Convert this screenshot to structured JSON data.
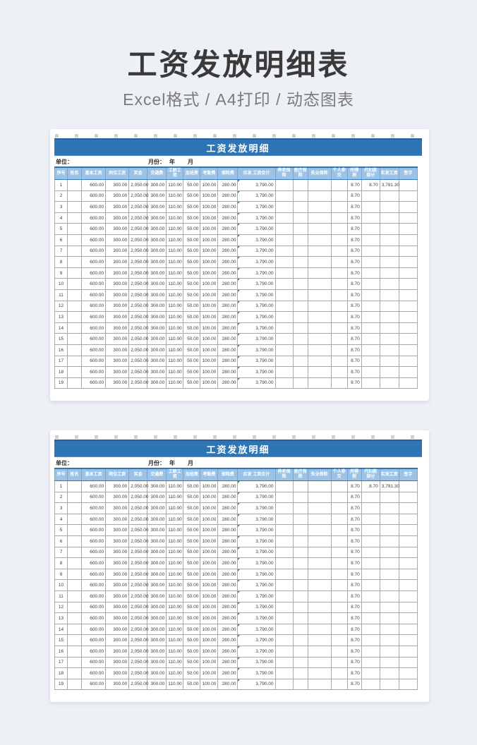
{
  "page": {
    "title": "工资发放明细表",
    "subtitle": "Excel格式 / A4打印 / 动态图表"
  },
  "colors": {
    "page_bg": "#edf0f5",
    "title_text": "#3a3a3a",
    "subtitle_text": "#7b7b7b",
    "bar_bg": "#2e75b6",
    "bar_top": "#275f96",
    "header_bg": "#9cc2e5",
    "header_text": "#ffffff",
    "header_border": "#76a5d6",
    "grid": "#a8a8a8",
    "cell_text": "#3c3c3c",
    "seniority_value": "#c45911",
    "error_flag": "#2e9e45"
  },
  "sheet": {
    "title": "工资发放明细",
    "unit_label": "单位：",
    "period_label": "月份：",
    "period_value": "年　月",
    "columns": [
      {
        "key": "index",
        "label": "序号",
        "width": 18,
        "align": "center"
      },
      {
        "key": "name",
        "label": "姓名",
        "width": 20,
        "align": "center"
      },
      {
        "key": "base-salary",
        "label": "基本工资",
        "width": 34,
        "align": "right"
      },
      {
        "key": "post-salary",
        "label": "岗位工资",
        "width": 33,
        "align": "right"
      },
      {
        "key": "bonus",
        "label": "奖金",
        "width": 26,
        "align": "right"
      },
      {
        "key": "transport-fee",
        "label": "交通费",
        "width": 27,
        "align": "right"
      },
      {
        "key": "seniority-pay",
        "label": "工龄工资",
        "width": 24,
        "align": "right",
        "cls": "warn"
      },
      {
        "key": "overtime-fee",
        "label": "加班费",
        "width": 24,
        "align": "right"
      },
      {
        "key": "attendance-fee",
        "label": "考勤费",
        "width": 25,
        "align": "right"
      },
      {
        "key": "insurance-fee",
        "label": "保险费",
        "width": 28,
        "align": "right"
      },
      {
        "key": "gross-total",
        "label": "应发 工资合计",
        "width": 53,
        "align": "right",
        "cls": "flag"
      },
      {
        "key": "pension-insurance",
        "label": "养老保险",
        "width": 25,
        "align": "right"
      },
      {
        "key": "medical-insurance",
        "label": "医疗保险",
        "width": 21,
        "align": "right"
      },
      {
        "key": "unemployment-insurance",
        "label": "失业保险",
        "width": 33,
        "align": "right"
      },
      {
        "key": "personal-contrib",
        "label": "个人参交",
        "width": 23,
        "align": "right"
      },
      {
        "key": "income-tax",
        "label": "所得税",
        "width": 20,
        "align": "right"
      },
      {
        "key": "withholding",
        "label": "代扣款部分",
        "width": 26,
        "align": "right"
      },
      {
        "key": "net-salary",
        "label": "实发工资",
        "width": 27,
        "align": "right"
      },
      {
        "key": "signature",
        "label": "签字",
        "width": 26,
        "align": "center"
      }
    ],
    "rows": [
      [
        "1",
        "",
        "600.00",
        "300.00",
        "2,050.00",
        "300.00",
        "110.00",
        "50.00",
        "100.00",
        "280.00",
        "3,790.00",
        "",
        "",
        "",
        "",
        "8.70",
        "8.70",
        "3,781.30",
        ""
      ],
      [
        "2",
        "",
        "600.00",
        "300.00",
        "2,050.00",
        "300.00",
        "110.00",
        "50.00",
        "100.00",
        "280.00",
        "3,790.00",
        "",
        "",
        "",
        "",
        "8.70",
        "",
        "",
        ""
      ],
      [
        "3",
        "",
        "600.00",
        "300.00",
        "2,050.00",
        "300.00",
        "110.00",
        "50.00",
        "100.00",
        "280.00",
        "3,790.00",
        "",
        "",
        "",
        "",
        "8.70",
        "",
        "",
        ""
      ],
      [
        "4",
        "",
        "600.00",
        "300.00",
        "2,050.00",
        "300.00",
        "110.00",
        "50.00",
        "100.00",
        "280.00",
        "3,790.00",
        "",
        "",
        "",
        "",
        "8.70",
        "",
        "",
        ""
      ],
      [
        "5",
        "",
        "600.00",
        "300.00",
        "2,050.00",
        "300.00",
        "110.00",
        "50.00",
        "100.00",
        "280.00",
        "3,790.00",
        "",
        "",
        "",
        "",
        "8.70",
        "",
        "",
        ""
      ],
      [
        "6",
        "",
        "600.00",
        "300.00",
        "2,050.00",
        "300.00",
        "110.00",
        "50.00",
        "100.00",
        "280.00",
        "3,790.00",
        "",
        "",
        "",
        "",
        "8.70",
        "",
        "",
        ""
      ],
      [
        "7",
        "",
        "600.00",
        "300.00",
        "2,050.00",
        "300.00",
        "110.00",
        "50.00",
        "100.00",
        "280.00",
        "3,790.00",
        "",
        "",
        "",
        "",
        "8.70",
        "",
        "",
        ""
      ],
      [
        "8",
        "",
        "600.00",
        "300.00",
        "2,050.00",
        "300.00",
        "110.00",
        "50.00",
        "100.00",
        "280.00",
        "3,790.00",
        "",
        "",
        "",
        "",
        "8.70",
        "",
        "",
        ""
      ],
      [
        "9",
        "",
        "600.00",
        "300.00",
        "2,050.00",
        "300.00",
        "110.00",
        "50.00",
        "100.00",
        "280.00",
        "3,790.00",
        "",
        "",
        "",
        "",
        "8.70",
        "",
        "",
        ""
      ],
      [
        "10",
        "",
        "600.00",
        "300.00",
        "2,050.00",
        "300.00",
        "110.00",
        "50.00",
        "100.00",
        "280.00",
        "3,790.00",
        "",
        "",
        "",
        "",
        "8.70",
        "",
        "",
        ""
      ],
      [
        "11",
        "",
        "600.00",
        "300.00",
        "2,050.00",
        "300.00",
        "110.00",
        "50.00",
        "100.00",
        "280.00",
        "3,790.00",
        "",
        "",
        "",
        "",
        "8.70",
        "",
        "",
        ""
      ],
      [
        "12",
        "",
        "600.00",
        "300.00",
        "2,050.00",
        "300.00",
        "110.00",
        "50.00",
        "100.00",
        "280.00",
        "3,790.00",
        "",
        "",
        "",
        "",
        "8.70",
        "",
        "",
        ""
      ],
      [
        "13",
        "",
        "600.00",
        "300.00",
        "2,050.00",
        "300.00",
        "110.00",
        "50.00",
        "100.00",
        "280.00",
        "3,790.00",
        "",
        "",
        "",
        "",
        "8.70",
        "",
        "",
        ""
      ],
      [
        "14",
        "",
        "600.00",
        "300.00",
        "2,050.00",
        "300.00",
        "110.00",
        "50.00",
        "100.00",
        "280.00",
        "3,790.00",
        "",
        "",
        "",
        "",
        "8.70",
        "",
        "",
        ""
      ],
      [
        "15",
        "",
        "600.00",
        "300.00",
        "2,050.00",
        "300.00",
        "110.00",
        "50.00",
        "100.00",
        "280.00",
        "3,790.00",
        "",
        "",
        "",
        "",
        "8.70",
        "",
        "",
        ""
      ],
      [
        "16",
        "",
        "600.00",
        "300.00",
        "2,050.00",
        "300.00",
        "110.00",
        "50.00",
        "100.00",
        "280.00",
        "3,790.00",
        "",
        "",
        "",
        "",
        "8.70",
        "",
        "",
        ""
      ],
      [
        "17",
        "",
        "600.00",
        "300.00",
        "2,050.00",
        "300.00",
        "110.00",
        "50.00",
        "100.00",
        "280.00",
        "3,790.00",
        "",
        "",
        "",
        "",
        "8.70",
        "",
        "",
        ""
      ],
      [
        "18",
        "",
        "600.00",
        "300.00",
        "2,050.00",
        "300.00",
        "110.00",
        "50.00",
        "100.00",
        "280.00",
        "3,790.00",
        "",
        "",
        "",
        "",
        "8.70",
        "",
        "",
        ""
      ],
      [
        "19",
        "",
        "600.00",
        "300.00",
        "2,050.00",
        "300.00",
        "110.00",
        "50.00",
        "100.00",
        "280.00",
        "3,790.00",
        "",
        "",
        "",
        "",
        "8.70",
        "",
        "",
        ""
      ]
    ]
  }
}
